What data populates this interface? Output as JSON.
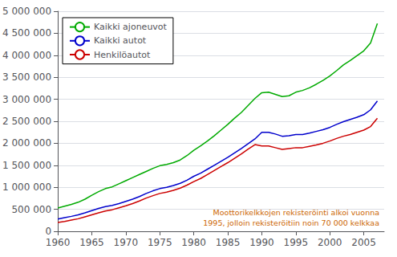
{
  "chart_data": {
    "type": "line",
    "x": [
      1960,
      1961,
      1962,
      1963,
      1964,
      1965,
      1966,
      1967,
      1968,
      1969,
      1970,
      1971,
      1972,
      1973,
      1974,
      1975,
      1976,
      1977,
      1978,
      1979,
      1980,
      1981,
      1982,
      1983,
      1984,
      1985,
      1986,
      1987,
      1988,
      1989,
      1990,
      1991,
      1992,
      1993,
      1994,
      1995,
      1996,
      1997,
      1998,
      1999,
      2000,
      2001,
      2002,
      2003,
      2004,
      2005,
      2006,
      2007
    ],
    "series": [
      {
        "name": "Kaikki ajoneuvot",
        "color": "#00aa00",
        "values": [
          530000,
          570000,
          610000,
          660000,
          730000,
          820000,
          900000,
          970000,
          1010000,
          1080000,
          1150000,
          1220000,
          1290000,
          1360000,
          1430000,
          1490000,
          1520000,
          1560000,
          1620000,
          1720000,
          1840000,
          1940000,
          2050000,
          2170000,
          2300000,
          2430000,
          2570000,
          2700000,
          2860000,
          3020000,
          3150000,
          3160000,
          3110000,
          3060000,
          3080000,
          3160000,
          3200000,
          3260000,
          3340000,
          3430000,
          3530000,
          3650000,
          3780000,
          3880000,
          3990000,
          4100000,
          4280000,
          4720000
        ]
      },
      {
        "name": "Kaikki autot",
        "color": "#0000cc",
        "values": [
          280000,
          310000,
          340000,
          375000,
          420000,
          470000,
          520000,
          560000,
          590000,
          630000,
          680000,
          730000,
          790000,
          860000,
          920000,
          970000,
          1000000,
          1040000,
          1090000,
          1160000,
          1250000,
          1320000,
          1410000,
          1500000,
          1590000,
          1680000,
          1780000,
          1880000,
          1990000,
          2100000,
          2250000,
          2250000,
          2210000,
          2160000,
          2170000,
          2200000,
          2200000,
          2230000,
          2270000,
          2310000,
          2360000,
          2430000,
          2490000,
          2540000,
          2590000,
          2650000,
          2760000,
          2960000
        ]
      },
      {
        "name": "Henkilöautot",
        "color": "#cc0000",
        "values": [
          200000,
          225000,
          255000,
          285000,
          330000,
          375000,
          420000,
          460000,
          490000,
          535000,
          580000,
          630000,
          690000,
          755000,
          810000,
          860000,
          890000,
          930000,
          980000,
          1050000,
          1130000,
          1200000,
          1290000,
          1380000,
          1470000,
          1560000,
          1660000,
          1760000,
          1870000,
          1970000,
          1940000,
          1940000,
          1900000,
          1860000,
          1880000,
          1900000,
          1900000,
          1930000,
          1960000,
          2000000,
          2050000,
          2110000,
          2160000,
          2200000,
          2250000,
          2300000,
          2380000,
          2570000
        ]
      }
    ],
    "xlim": [
      1960,
      2008
    ],
    "xticks": [
      1960,
      1965,
      1970,
      1975,
      1980,
      1985,
      1990,
      1995,
      2000,
      2005
    ],
    "ylim": [
      0,
      5000000
    ],
    "yticks": [
      0,
      {
        "value": 500000,
        "label": "500 000"
      },
      {
        "value": 1000000,
        "label": "1 000 000"
      },
      {
        "value": 1500000,
        "label": "1 500 000"
      },
      {
        "value": 2000000,
        "label": "2 000 000"
      },
      {
        "value": 2500000,
        "label": "2 500 000"
      },
      {
        "value": 3000000,
        "label": "3 000 000"
      },
      {
        "value": 3500000,
        "label": "3 500 000"
      },
      {
        "value": 4000000,
        "label": "4 000 000"
      },
      {
        "value": 4500000,
        "label": "4 500 000"
      },
      {
        "value": 5000000,
        "label": "5 000 000"
      }
    ],
    "grid": true,
    "legend": "upper left",
    "annotations": [
      "Moottorikelkkojen rekisteröinti alkoi vuonna",
      "1995, jolloin rekisteröitiin noin 70 000 kelkkaa"
    ],
    "annotation_color": "#cc6600"
  }
}
